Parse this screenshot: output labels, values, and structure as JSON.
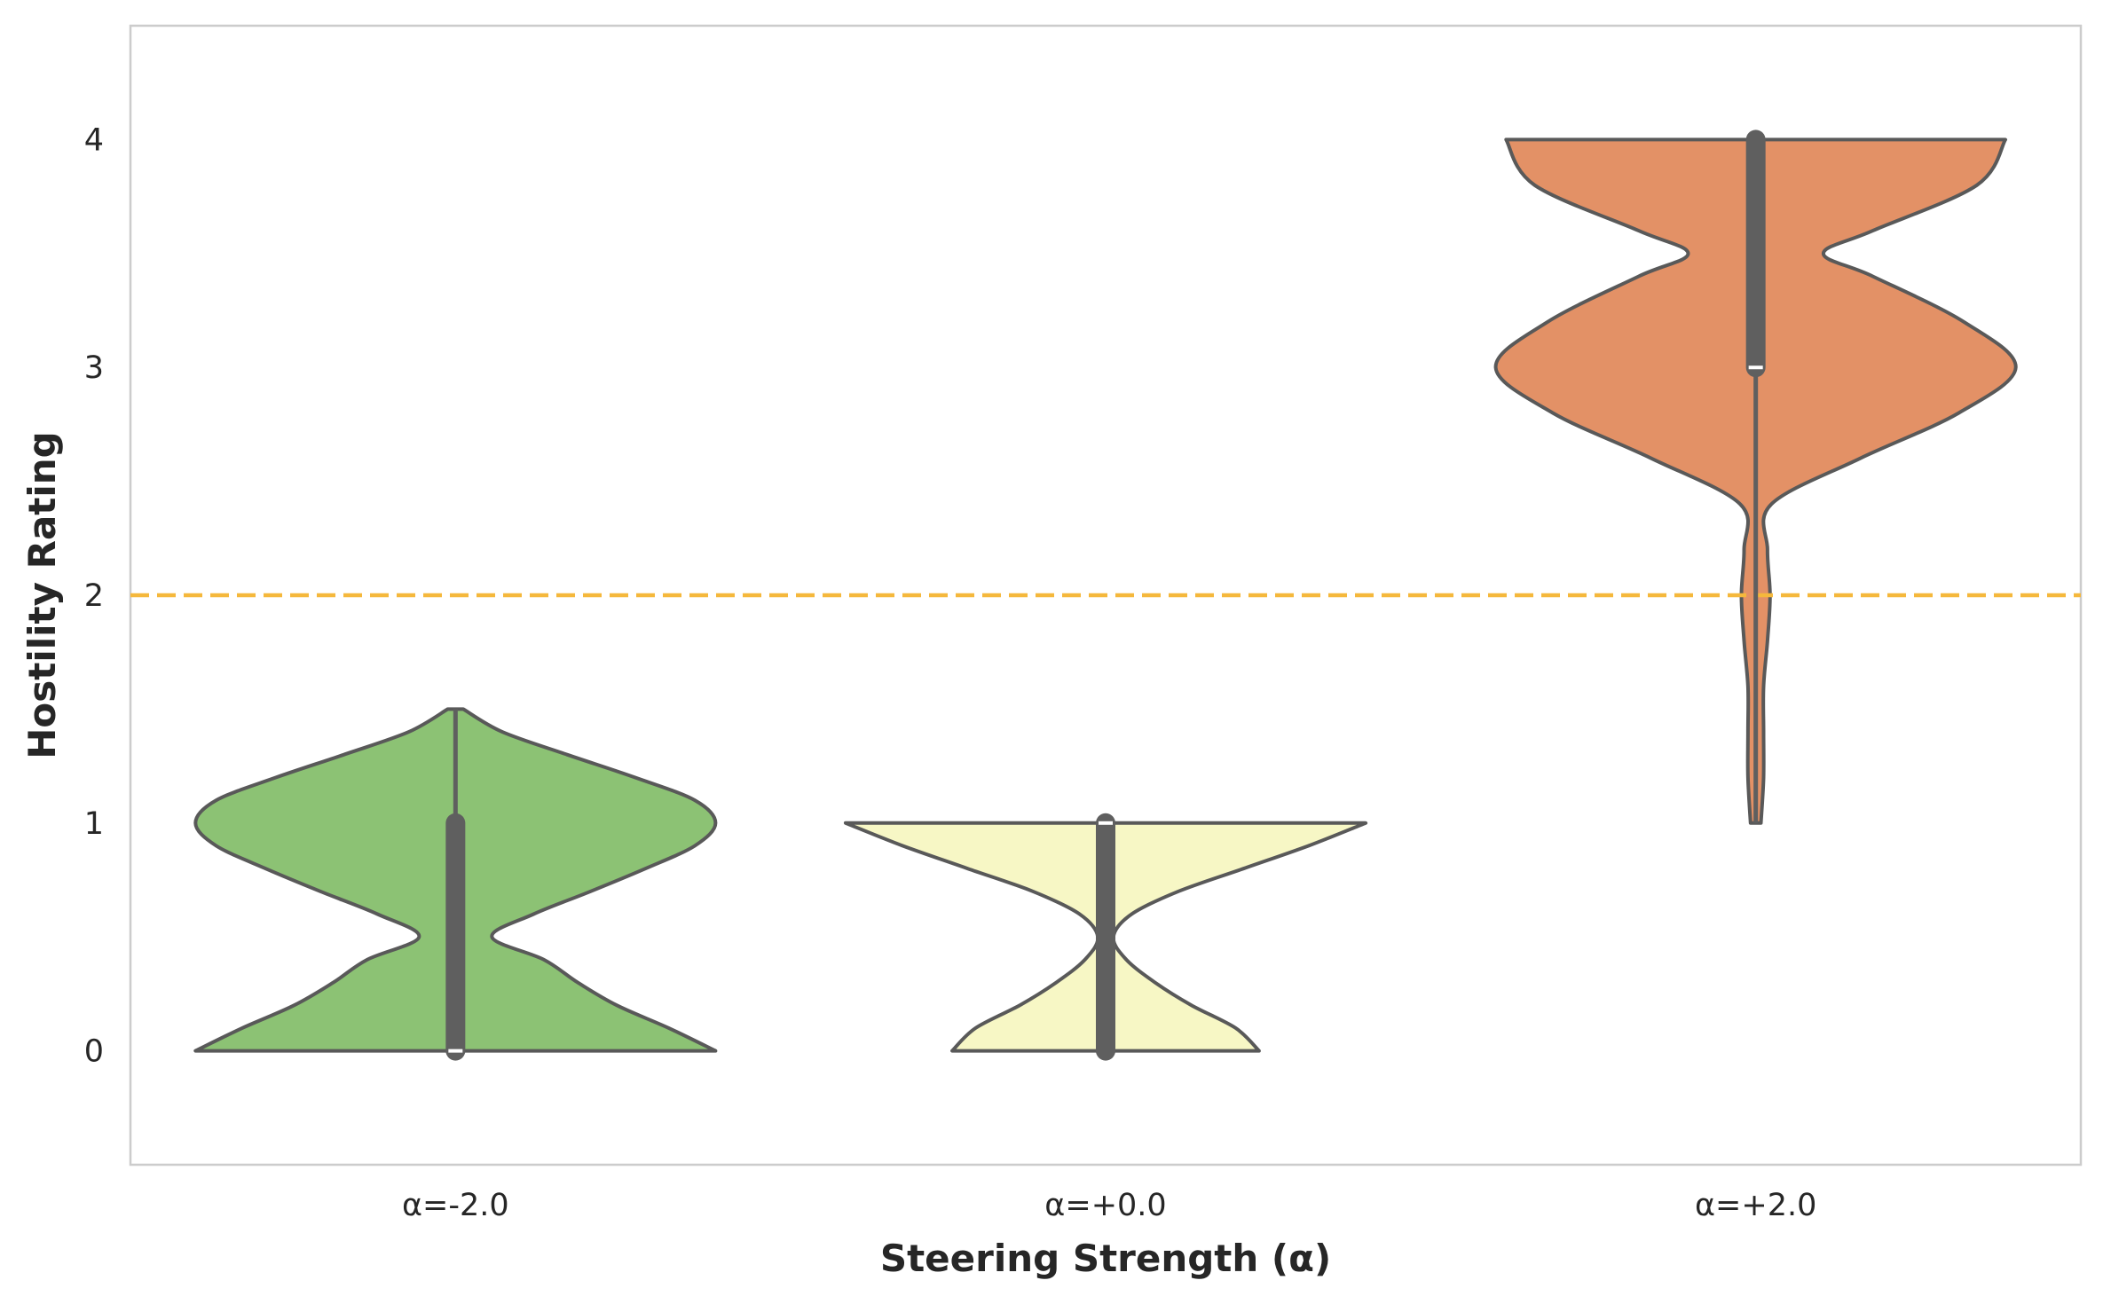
{
  "chart_data": {
    "type": "violin",
    "xlabel": "Steering Strength (α)",
    "ylabel": "Hostility Rating",
    "categories": [
      "α=-2.0",
      "α=+0.0",
      "α=+2.0"
    ],
    "ylim": [
      -0.5,
      4.5
    ],
    "yticks": [
      "0",
      "1",
      "2",
      "3",
      "4"
    ],
    "grid": false,
    "reference_line": {
      "y": 2.0,
      "color": "#f5b83c",
      "style": "dashed"
    },
    "series": [
      {
        "category": "α=-2.0",
        "color": "#8cc274",
        "range": [
          0,
          1.5
        ],
        "median": 0,
        "q1": 0,
        "q3": 1,
        "density": [
          [
            0,
            1.0
          ],
          [
            0.1,
            0.82
          ],
          [
            0.2,
            0.62
          ],
          [
            0.3,
            0.47
          ],
          [
            0.4,
            0.34
          ],
          [
            0.5,
            0.14
          ],
          [
            0.6,
            0.3
          ],
          [
            0.7,
            0.52
          ],
          [
            0.8,
            0.73
          ],
          [
            0.9,
            0.92
          ],
          [
            1.0,
            1.0
          ],
          [
            1.1,
            0.92
          ],
          [
            1.2,
            0.69
          ],
          [
            1.3,
            0.43
          ],
          [
            1.4,
            0.18
          ],
          [
            1.5,
            0.03
          ]
        ]
      },
      {
        "category": "α=+0.0",
        "color": "#f7f7c5",
        "range": [
          0,
          1
        ],
        "median": 1,
        "q1": 0,
        "q3": 1,
        "density": [
          [
            0,
            0.59
          ],
          [
            0.1,
            0.5
          ],
          [
            0.2,
            0.33
          ],
          [
            0.3,
            0.19
          ],
          [
            0.4,
            0.08
          ],
          [
            0.5,
            0.03
          ],
          [
            0.6,
            0.1
          ],
          [
            0.7,
            0.28
          ],
          [
            0.8,
            0.53
          ],
          [
            0.9,
            0.78
          ],
          [
            1.0,
            1.0
          ]
        ]
      },
      {
        "category": "α=+2.0",
        "color": "#e39166",
        "range": [
          1,
          4
        ],
        "median": 3,
        "q1": 3,
        "q3": 4,
        "density": [
          [
            1.0,
            0.02
          ],
          [
            1.2,
            0.03
          ],
          [
            1.4,
            0.03
          ],
          [
            1.6,
            0.03
          ],
          [
            1.8,
            0.045
          ],
          [
            2.0,
            0.055
          ],
          [
            2.2,
            0.045
          ],
          [
            2.4,
            0.06
          ],
          [
            2.6,
            0.4
          ],
          [
            2.8,
            0.78
          ],
          [
            3.0,
            1.0
          ],
          [
            3.2,
            0.8
          ],
          [
            3.4,
            0.45
          ],
          [
            3.5,
            0.26
          ],
          [
            3.6,
            0.45
          ],
          [
            3.8,
            0.85
          ],
          [
            4.0,
            0.96
          ]
        ]
      }
    ]
  }
}
